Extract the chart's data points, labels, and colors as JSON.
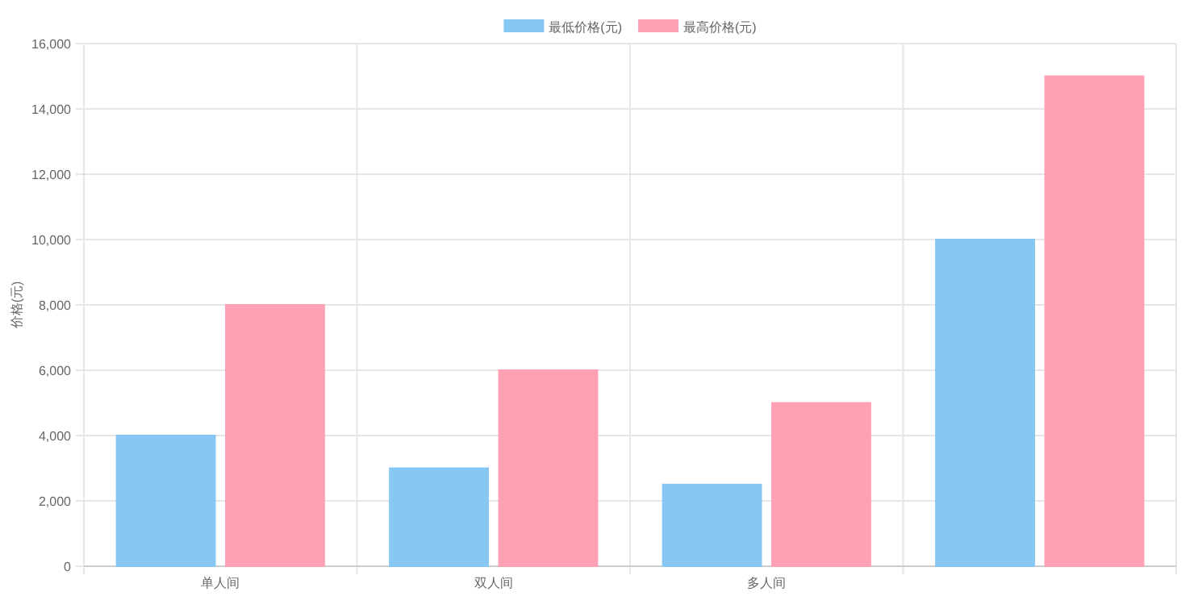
{
  "chart_data": {
    "type": "bar",
    "ylabel": "价格(元)",
    "categories": [
      "单人间",
      "双人间",
      "多人间",
      null
    ],
    "series": [
      {
        "name": "最低价格(元)",
        "color": "#86c7f3",
        "values": [
          4000,
          3000,
          2500,
          10000
        ]
      },
      {
        "name": "最高价格(元)",
        "color": "#ffa1b5",
        "values": [
          8000,
          6000,
          5000,
          15000
        ]
      }
    ],
    "ylim": [
      0,
      16000
    ],
    "yticks": [
      0,
      {
        "value": 2000,
        "label": "2,000"
      },
      {
        "value": 4000,
        "label": "4,000"
      },
      {
        "value": 6000,
        "label": "6,000"
      },
      {
        "value": 8000,
        "label": "8,000"
      },
      {
        "value": 10000,
        "label": "10,000"
      },
      {
        "value": 12000,
        "label": "12,000"
      },
      {
        "value": 14000,
        "label": "14,000"
      },
      {
        "value": 16000,
        "label": "16,000"
      }
    ],
    "grid": true,
    "legend": "top"
  }
}
